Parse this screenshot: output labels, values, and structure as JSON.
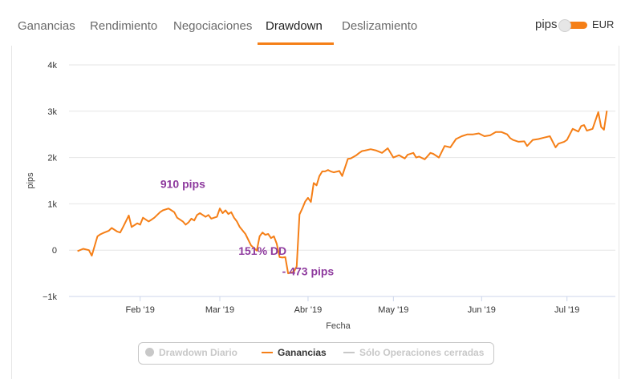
{
  "tabs": [
    {
      "label": "Ganancias"
    },
    {
      "label": "Rendimiento"
    },
    {
      "label": "Negociaciones"
    },
    {
      "label": "Drawdown",
      "active": true
    },
    {
      "label": "Deslizamiento"
    }
  ],
  "unit_toggle": {
    "left_label": "pips",
    "right_label": "EUR",
    "selected": "EUR"
  },
  "colors": {
    "accent": "#f57f17",
    "line": "#f57f17",
    "annotation": "#8e3a9e",
    "inactive": "#c8c8c8"
  },
  "legend": {
    "items": [
      {
        "label": "Drawdown Diario",
        "active": false,
        "color": "#c8c8c8"
      },
      {
        "label": "Ganancias",
        "active": true,
        "color": "#f57f17"
      },
      {
        "label": "Sólo Operaciones cerradas",
        "active": false,
        "color": "#c8c8c8"
      }
    ]
  },
  "chart_data": {
    "type": "line",
    "ylabel": "pips",
    "xlabel": "Fecha",
    "ylim": [
      -1000,
      4000
    ],
    "yticks": [
      -1000,
      0,
      1000,
      2000,
      3000,
      4000
    ],
    "ytick_labels": [
      "−1k",
      "0",
      "1k",
      "2k",
      "3k",
      "4k"
    ],
    "xlim": [
      "2019-01-07",
      "2019-07-18"
    ],
    "xticks": [
      "2019-02-01",
      "2019-03-01",
      "2019-04-01",
      "2019-05-01",
      "2019-06-01",
      "2019-07-01"
    ],
    "xtick_labels": [
      "Feb '19",
      "Mar '19",
      "Abr '19",
      "May '19",
      "Jun '19",
      "Jul '19"
    ],
    "grid": "horizontal",
    "annotations": [
      {
        "text": "910 pips",
        "x": "2019-02-16",
        "y": 1340
      },
      {
        "text": "151% DD",
        "x": "2019-03-16",
        "y": -100
      },
      {
        "text": "- 473 pips",
        "x": "2019-04-01",
        "y": -540
      }
    ],
    "series": [
      {
        "name": "Ganancias",
        "x": [
          "2019-01-10",
          "2019-01-12",
          "2019-01-14",
          "2019-01-15",
          "2019-01-17",
          "2019-01-18",
          "2019-01-19",
          "2019-01-21",
          "2019-01-22",
          "2019-01-24",
          "2019-01-25",
          "2019-01-26",
          "2019-01-28",
          "2019-01-29",
          "2019-01-30",
          "2019-01-31",
          "2019-02-01",
          "2019-02-02",
          "2019-02-04",
          "2019-02-05",
          "2019-02-06",
          "2019-02-08",
          "2019-02-09",
          "2019-02-11",
          "2019-02-12",
          "2019-02-13",
          "2019-02-14",
          "2019-02-16",
          "2019-02-17",
          "2019-02-18",
          "2019-02-19",
          "2019-02-20",
          "2019-02-21",
          "2019-02-22",
          "2019-02-24",
          "2019-02-25",
          "2019-02-26",
          "2019-02-27",
          "2019-02-28",
          "2019-03-01",
          "2019-03-02",
          "2019-03-03",
          "2019-03-04",
          "2019-03-05",
          "2019-03-06",
          "2019-03-07",
          "2019-03-08",
          "2019-03-10",
          "2019-03-12",
          "2019-03-14",
          "2019-03-15",
          "2019-03-16",
          "2019-03-17",
          "2019-03-18",
          "2019-03-19",
          "2019-03-20",
          "2019-03-21",
          "2019-03-22",
          "2019-03-23",
          "2019-03-24",
          "2019-03-25",
          "2019-03-27",
          "2019-03-28",
          "2019-03-29",
          "2019-03-30",
          "2019-03-31",
          "2019-04-01",
          "2019-04-02",
          "2019-04-03",
          "2019-04-04",
          "2019-04-05",
          "2019-04-06",
          "2019-04-07",
          "2019-04-08",
          "2019-04-09",
          "2019-04-10",
          "2019-04-12",
          "2019-04-13",
          "2019-04-15",
          "2019-04-16",
          "2019-04-18",
          "2019-04-19",
          "2019-04-20",
          "2019-04-21",
          "2019-04-23",
          "2019-04-25",
          "2019-04-27",
          "2019-04-29",
          "2019-05-01",
          "2019-05-03",
          "2019-05-05",
          "2019-05-06",
          "2019-05-08",
          "2019-05-09",
          "2019-05-10",
          "2019-05-12",
          "2019-05-14",
          "2019-05-15",
          "2019-05-17",
          "2019-05-19",
          "2019-05-21",
          "2019-05-23",
          "2019-05-25",
          "2019-05-27",
          "2019-05-29",
          "2019-05-31",
          "2019-06-02",
          "2019-06-04",
          "2019-06-06",
          "2019-06-08",
          "2019-06-10",
          "2019-06-11",
          "2019-06-12",
          "2019-06-14",
          "2019-06-16",
          "2019-06-17",
          "2019-06-19",
          "2019-06-21",
          "2019-06-23",
          "2019-06-25",
          "2019-06-27",
          "2019-06-28",
          "2019-06-30",
          "2019-07-01",
          "2019-07-03",
          "2019-07-05",
          "2019-07-06",
          "2019-07-07",
          "2019-07-08",
          "2019-07-09",
          "2019-07-10",
          "2019-07-12",
          "2019-07-13",
          "2019-07-14",
          "2019-07-15"
        ],
        "y": [
          -20,
          30,
          0,
          -120,
          300,
          340,
          370,
          420,
          480,
          400,
          380,
          500,
          750,
          500,
          540,
          580,
          550,
          700,
          620,
          660,
          700,
          820,
          860,
          900,
          860,
          820,
          700,
          620,
          550,
          600,
          680,
          640,
          760,
          800,
          720,
          760,
          680,
          700,
          720,
          900,
          800,
          860,
          780,
          820,
          700,
          620,
          500,
          350,
          100,
          -10,
          300,
          380,
          330,
          350,
          260,
          300,
          140,
          -150,
          -160,
          -150,
          -500,
          -470,
          -350,
          770,
          900,
          1050,
          1130,
          1040,
          1450,
          1400,
          1600,
          1700,
          1700,
          1730,
          1700,
          1680,
          1710,
          1600,
          1970,
          1980,
          2050,
          2100,
          2140,
          2150,
          2180,
          2150,
          2100,
          2200,
          2000,
          2050,
          1980,
          2060,
          2100,
          2000,
          2020,
          1960,
          2100,
          2080,
          2000,
          2250,
          2220,
          2400,
          2460,
          2500,
          2500,
          2520,
          2460,
          2480,
          2550,
          2550,
          2500,
          2420,
          2380,
          2340,
          2350,
          2250,
          2380,
          2400,
          2430,
          2460,
          2220,
          2300,
          2340,
          2380,
          2620,
          2560,
          2680,
          2700,
          2580,
          2600,
          2620,
          2980,
          2660,
          2600,
          3010
        ]
      }
    ]
  }
}
